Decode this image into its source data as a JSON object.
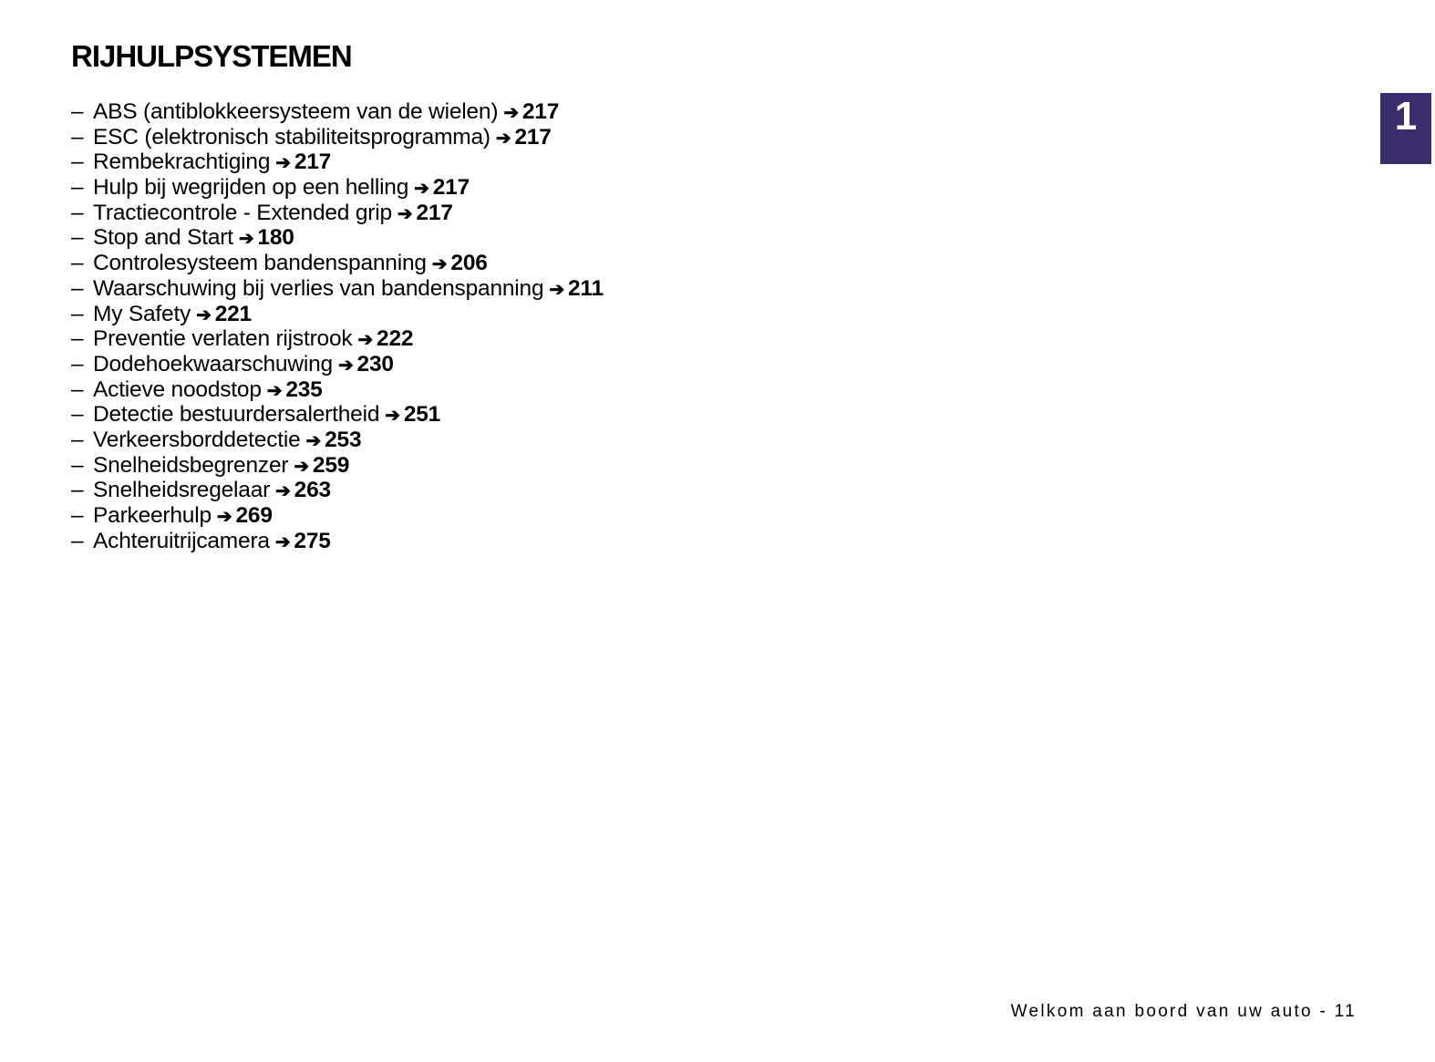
{
  "title": "RIJHULPSYSTEMEN",
  "chapter_tab": "1",
  "dash": "–",
  "arrow": "➔",
  "items": [
    {
      "label": "ABS (antiblokkeersysteem van de wielen)",
      "page": "217"
    },
    {
      "label": "ESC (elektronisch stabiliteitsprogramma)",
      "page": "217"
    },
    {
      "label": "Rembekrachtiging",
      "page": "217"
    },
    {
      "label": "Hulp bij wegrijden op een helling",
      "page": "217"
    },
    {
      "label": "Tractiecontrole - Extended grip",
      "page": "217"
    },
    {
      "label": "Stop and Start",
      "page": "180"
    },
    {
      "label": "Controlesysteem bandenspanning",
      "page": "206"
    },
    {
      "label": "Waarschuwing bij verlies van bandenspanning",
      "page": "211"
    },
    {
      "label": "My Safety",
      "page": "221"
    },
    {
      "label": "Preventie verlaten rijstrook",
      "page": "222"
    },
    {
      "label": "Dodehoekwaarschuwing",
      "page": "230"
    },
    {
      "label": "Actieve noodstop",
      "page": "235"
    },
    {
      "label": "Detectie bestuurdersalertheid",
      "page": "251"
    },
    {
      "label": "Verkeersborddetectie",
      "page": "253"
    },
    {
      "label": "Snelheidsbegrenzer",
      "page": "259"
    },
    {
      "label": "Snelheidsregelaar",
      "page": "263"
    },
    {
      "label": "Parkeerhulp",
      "page": "269"
    },
    {
      "label": "Achteruitrijcamera",
      "page": "275"
    }
  ],
  "footer": "Welkom aan boord van uw auto - 11",
  "colors": {
    "tab": "#3a2d6a"
  }
}
